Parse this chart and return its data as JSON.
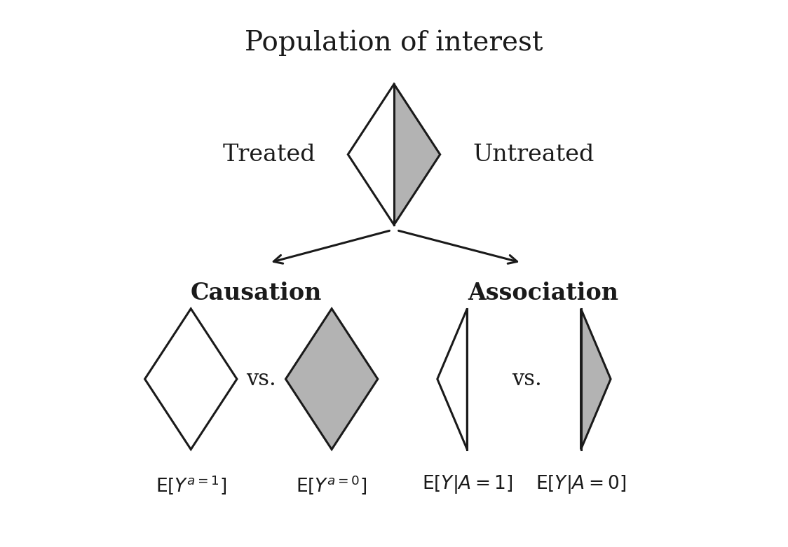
{
  "title": "Population of interest",
  "title_fontsize": 28,
  "background_color": "#ffffff",
  "text_color": "#1a1a1a",
  "gray_fill": "#b3b3b3",
  "white_fill": "#ffffff",
  "line_color": "#1a1a1a",
  "linewidth": 2.2,
  "treated_label": "Treated",
  "untreated_label": "Untreated",
  "causation_label": "Causation",
  "association_label": "Association",
  "vs_fontsize": 22,
  "label_fontsize": 24,
  "eq_fontsize": 19,
  "figw": 11.24,
  "figh": 7.81,
  "dpi": 100
}
